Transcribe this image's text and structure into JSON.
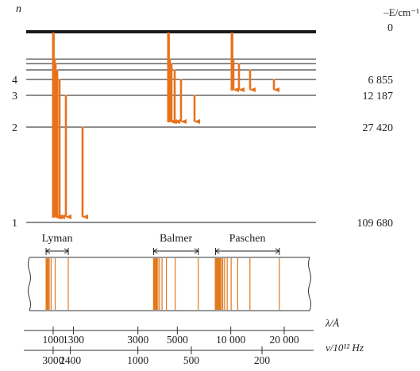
{
  "colors": {
    "transition": "#e8721c",
    "line": "#1a1a1a",
    "spectrum_line": "#e07a1f"
  },
  "axis": {
    "n_label": "n",
    "energy_label": "–E/cm⁻¹"
  },
  "levels": [
    {
      "n": "1",
      "n_label": "1",
      "energy": 109680,
      "energy_label": "109 680"
    },
    {
      "n": "2",
      "n_label": "2",
      "energy": 27420,
      "energy_label": "27 420"
    },
    {
      "n": "3",
      "n_label": "3",
      "energy": 12187,
      "energy_label": "12 187"
    },
    {
      "n": "4",
      "n_label": "4",
      "energy": 6855,
      "energy_label": "6 855"
    },
    {
      "n": "5",
      "n_label": "",
      "energy": 4387,
      "energy_label": ""
    },
    {
      "n": "6",
      "n_label": "",
      "energy": 3047,
      "energy_label": ""
    },
    {
      "n": "7",
      "n_label": "",
      "energy": 2238,
      "energy_label": ""
    },
    {
      "n": "∞",
      "n_label": "",
      "energy": 0,
      "energy_label": "0"
    }
  ],
  "series": [
    {
      "name": "Lyman",
      "lower": 1,
      "uppers": [
        2,
        3,
        4,
        5,
        6,
        7
      ],
      "lines_angstrom": [
        1216,
        1026,
        973,
        950,
        938,
        931,
        926,
        923,
        920,
        918,
        917,
        916,
        915,
        914,
        913,
        912
      ]
    },
    {
      "name": "Balmer",
      "lower": 2,
      "uppers": [
        3,
        4,
        5,
        6,
        7
      ],
      "lines_angstrom": [
        6563,
        4861,
        4340,
        4102,
        3970,
        3889,
        3835,
        3798,
        3771,
        3750,
        3734,
        3722,
        3711,
        3704,
        3697,
        3692,
        3688,
        3685,
        3682,
        3680,
        3678,
        3676
      ]
    },
    {
      "name": "Paschen",
      "lower": 3,
      "uppers": [
        4,
        5,
        6,
        7
      ],
      "lines_angstrom": [
        18751,
        12818,
        10938,
        10049,
        9546,
        9229,
        9015,
        8863,
        8750,
        8665,
        8598,
        8545,
        8502,
        8467,
        8438,
        8413,
        8392,
        8374,
        8358,
        8345,
        8333,
        8323,
        8314,
        8306,
        8299,
        8293,
        8288,
        8283,
        8279,
        8275,
        8271,
        8268,
        8265,
        8262,
        8259,
        8256,
        8253,
        8251,
        8249,
        8247,
        8245,
        8243,
        8241,
        8239,
        8238,
        8237,
        8236,
        8235,
        8234,
        8233,
        8232,
        8231,
        8230,
        8229,
        8228,
        8227,
        8226,
        8225,
        8224,
        8223,
        8222,
        8221,
        8220,
        8219,
        8218,
        8217,
        8216,
        8215,
        8214,
        8213,
        8212,
        8211,
        8210,
        8209,
        8208,
        8207,
        8206,
        8205,
        8204
      ]
    }
  ],
  "wavelength_scale": {
    "label": "λ/Å",
    "ticks": [
      {
        "value": 1000,
        "label": "1000"
      },
      {
        "value": 1300,
        "label": "1300"
      },
      {
        "value": 3000,
        "label": "3000"
      },
      {
        "value": 5000,
        "label": "5000"
      },
      {
        "value": 10000,
        "label": "10 000"
      },
      {
        "value": 20000,
        "label": "20 000"
      }
    ]
  },
  "frequency_scale": {
    "label": "ν/10¹² Hz",
    "ticks": [
      {
        "value": 3000,
        "label": "3000"
      },
      {
        "value": 2400,
        "label": "2400"
      },
      {
        "value": 1000,
        "label": "1000"
      },
      {
        "value": 500,
        "label": "500"
      },
      {
        "value": 200,
        "label": "200"
      }
    ]
  }
}
